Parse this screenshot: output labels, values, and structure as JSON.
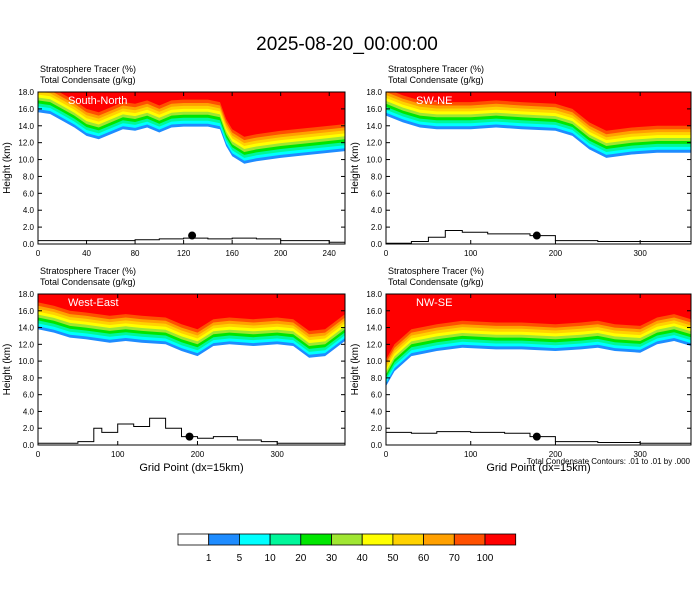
{
  "figure": {
    "title": "2025-08-20_00:00:00",
    "footnote": "Total Condensate Contours: .01 to .01 by .000"
  },
  "colorbar": {
    "colors": [
      "#ffffff",
      "#1e8cff",
      "#00ffff",
      "#00f79a",
      "#00e600",
      "#a0e632",
      "#ffff00",
      "#ffd200",
      "#ffa000",
      "#ff5000",
      "#ff0000"
    ],
    "labels": [
      "1",
      "5",
      "10",
      "20",
      "30",
      "40",
      "50",
      "60",
      "70",
      "100"
    ]
  },
  "chart_data": [
    {
      "type": "heatmap",
      "panel": "South-North",
      "title_line1": "Stratosphere Tracer   (%)",
      "title_line2": "Total Condensate   (g/kg)",
      "xlabel": "",
      "ylabel": "Height (km)",
      "xlim": [
        0,
        253
      ],
      "ylim": [
        0,
        18
      ],
      "xticks": [
        "0",
        "40",
        "80",
        "120",
        "160",
        "200",
        "240"
      ],
      "yticks": [
        "0.0",
        "2.0",
        "4.0",
        "6.0",
        "8.0",
        "10.0",
        "12.0",
        "14.0",
        "16.0",
        "18.0"
      ],
      "tracer_boundary": [
        [
          0,
          15.6
        ],
        [
          10,
          15.4
        ],
        [
          20,
          14.6
        ],
        [
          30,
          13.8
        ],
        [
          40,
          12.8
        ],
        [
          50,
          12.4
        ],
        [
          60,
          13.0
        ],
        [
          70,
          13.6
        ],
        [
          80,
          13.4
        ],
        [
          90,
          13.8
        ],
        [
          100,
          13.2
        ],
        [
          110,
          13.8
        ],
        [
          120,
          13.9
        ],
        [
          140,
          13.9
        ],
        [
          150,
          13.6
        ],
        [
          155,
          11.6
        ],
        [
          160,
          10.4
        ],
        [
          170,
          9.5
        ],
        [
          180,
          9.8
        ],
        [
          200,
          10.2
        ],
        [
          220,
          10.5
        ],
        [
          253,
          11.0
        ]
      ],
      "terrain": [
        [
          0,
          0.4
        ],
        [
          60,
          0.4
        ],
        [
          80,
          0.5
        ],
        [
          100,
          0.6
        ],
        [
          120,
          0.7
        ],
        [
          140,
          0.6
        ],
        [
          160,
          0.7
        ],
        [
          180,
          0.6
        ],
        [
          200,
          0.4
        ],
        [
          240,
          0.2
        ],
        [
          253,
          0.2
        ]
      ],
      "marker": [
        127,
        1.0
      ]
    },
    {
      "type": "heatmap",
      "panel": "SW-NE",
      "title_line1": "Stratosphere Tracer   (%)",
      "title_line2": "Total Condensate   (g/kg)",
      "xlabel": "",
      "ylabel": "Height (km)",
      "xlim": [
        0,
        360
      ],
      "ylim": [
        0,
        18
      ],
      "xticks": [
        "0",
        "100",
        "200",
        "300"
      ],
      "yticks": [
        "0.0",
        "2.0",
        "4.0",
        "6.0",
        "8.0",
        "10.0",
        "12.0",
        "14.0",
        "16.0",
        "18.0"
      ],
      "tracer_boundary": [
        [
          0,
          15.2
        ],
        [
          20,
          14.4
        ],
        [
          40,
          13.8
        ],
        [
          60,
          13.6
        ],
        [
          80,
          13.6
        ],
        [
          100,
          13.6
        ],
        [
          130,
          13.8
        ],
        [
          160,
          13.6
        ],
        [
          200,
          13.4
        ],
        [
          220,
          12.8
        ],
        [
          240,
          11.2
        ],
        [
          260,
          10.2
        ],
        [
          290,
          10.6
        ],
        [
          320,
          10.8
        ],
        [
          360,
          10.8
        ]
      ],
      "terrain": [
        [
          0,
          0.1
        ],
        [
          30,
          0.3
        ],
        [
          50,
          0.8
        ],
        [
          70,
          1.6
        ],
        [
          90,
          1.4
        ],
        [
          120,
          1.2
        ],
        [
          150,
          1.2
        ],
        [
          170,
          1.0
        ],
        [
          200,
          0.4
        ],
        [
          250,
          0.3
        ],
        [
          300,
          0.3
        ],
        [
          360,
          0.4
        ]
      ],
      "marker": [
        178,
        1.0
      ]
    },
    {
      "type": "heatmap",
      "panel": "West-East",
      "title_line1": "Stratosphere Tracer   (%)",
      "title_line2": "Total Condensate   (g/kg)",
      "xlabel": "Grid Point (dx=15km)",
      "ylabel": "Height (km)",
      "xlim": [
        0,
        385
      ],
      "ylim": [
        0,
        18
      ],
      "xticks": [
        "0",
        "100",
        "200",
        "300"
      ],
      "yticks": [
        "0.0",
        "2.0",
        "4.0",
        "6.0",
        "8.0",
        "10.0",
        "12.0",
        "14.0",
        "16.0",
        "18.0"
      ],
      "tracer_boundary": [
        [
          0,
          13.8
        ],
        [
          20,
          13.4
        ],
        [
          40,
          12.8
        ],
        [
          60,
          12.6
        ],
        [
          90,
          12.2
        ],
        [
          110,
          12.4
        ],
        [
          130,
          12.2
        ],
        [
          160,
          12.0
        ],
        [
          180,
          11.2
        ],
        [
          200,
          10.6
        ],
        [
          220,
          11.8
        ],
        [
          240,
          12.0
        ],
        [
          270,
          11.8
        ],
        [
          300,
          12.0
        ],
        [
          320,
          11.8
        ],
        [
          340,
          10.4
        ],
        [
          360,
          10.6
        ],
        [
          385,
          12.4
        ]
      ],
      "terrain": [
        [
          0,
          0.2
        ],
        [
          50,
          0.4
        ],
        [
          70,
          2.0
        ],
        [
          80,
          1.5
        ],
        [
          100,
          2.5
        ],
        [
          120,
          2.2
        ],
        [
          140,
          3.2
        ],
        [
          160,
          2.0
        ],
        [
          180,
          1.0
        ],
        [
          200,
          0.8
        ],
        [
          220,
          1.0
        ],
        [
          250,
          0.6
        ],
        [
          280,
          0.4
        ],
        [
          300,
          0.2
        ],
        [
          385,
          0.2
        ]
      ],
      "marker": [
        190,
        1.0
      ]
    },
    {
      "type": "heatmap",
      "panel": "NW-SE",
      "title_line1": "Stratosphere Tracer   (%)",
      "title_line2": "Total Condensate   (g/kg)",
      "xlabel": "Grid Point (dx=15km)",
      "ylabel": "Height (km)",
      "xlim": [
        0,
        360
      ],
      "ylim": [
        0,
        18
      ],
      "xticks": [
        "0",
        "100",
        "200",
        "300"
      ],
      "yticks": [
        "0.0",
        "2.0",
        "4.0",
        "6.0",
        "8.0",
        "10.0",
        "12.0",
        "14.0",
        "16.0",
        "18.0"
      ],
      "tracer_boundary": [
        [
          0,
          7.0
        ],
        [
          10,
          8.8
        ],
        [
          30,
          10.6
        ],
        [
          60,
          11.2
        ],
        [
          90,
          11.6
        ],
        [
          130,
          11.4
        ],
        [
          160,
          11.4
        ],
        [
          200,
          11.2
        ],
        [
          230,
          11.4
        ],
        [
          250,
          11.6
        ],
        [
          270,
          11.2
        ],
        [
          300,
          11.0
        ],
        [
          320,
          12.0
        ],
        [
          340,
          12.4
        ],
        [
          360,
          11.8
        ]
      ],
      "terrain": [
        [
          0,
          1.5
        ],
        [
          30,
          1.4
        ],
        [
          60,
          1.6
        ],
        [
          100,
          1.5
        ],
        [
          140,
          1.4
        ],
        [
          170,
          1.0
        ],
        [
          200,
          0.4
        ],
        [
          250,
          0.3
        ],
        [
          300,
          0.2
        ],
        [
          360,
          0.3
        ]
      ],
      "marker": [
        178,
        1.0
      ]
    }
  ]
}
